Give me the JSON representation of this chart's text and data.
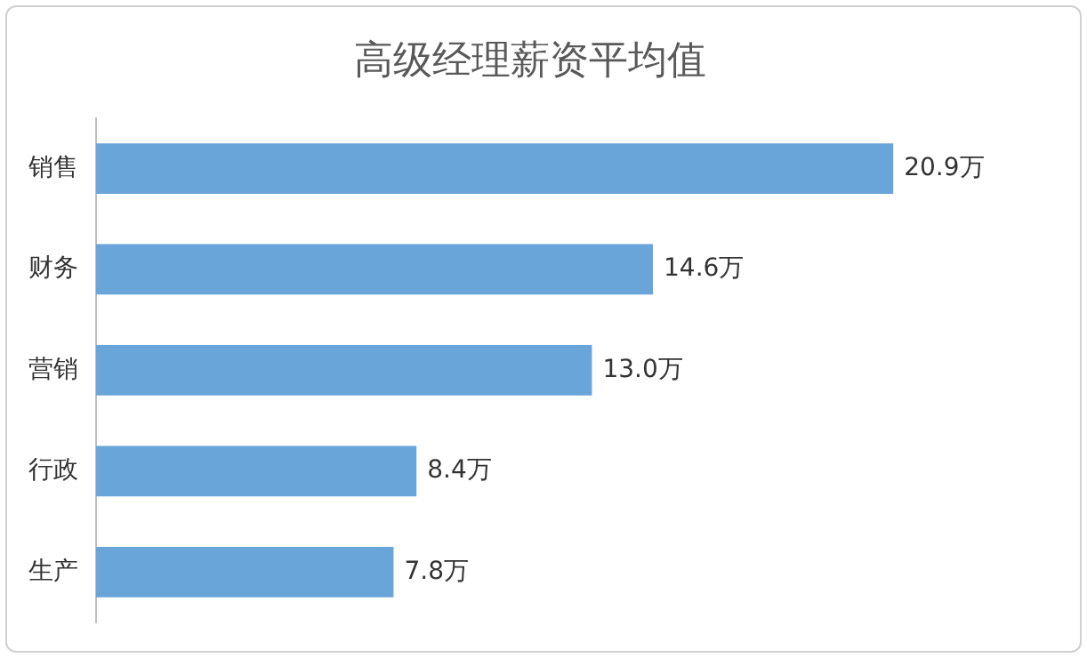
{
  "chart_data": {
    "type": "bar",
    "orientation": "horizontal",
    "title": "高级经理薪资平均值",
    "categories": [
      "销售",
      "财务",
      "营销",
      "行政",
      "生产"
    ],
    "values": [
      20.9,
      14.6,
      13.0,
      8.4,
      7.8
    ],
    "value_labels": [
      "20.9万",
      "14.6万",
      "13.0万",
      "8.4万",
      "7.8万"
    ],
    "color": "#6aa5da",
    "tick_labels": "y"
  }
}
